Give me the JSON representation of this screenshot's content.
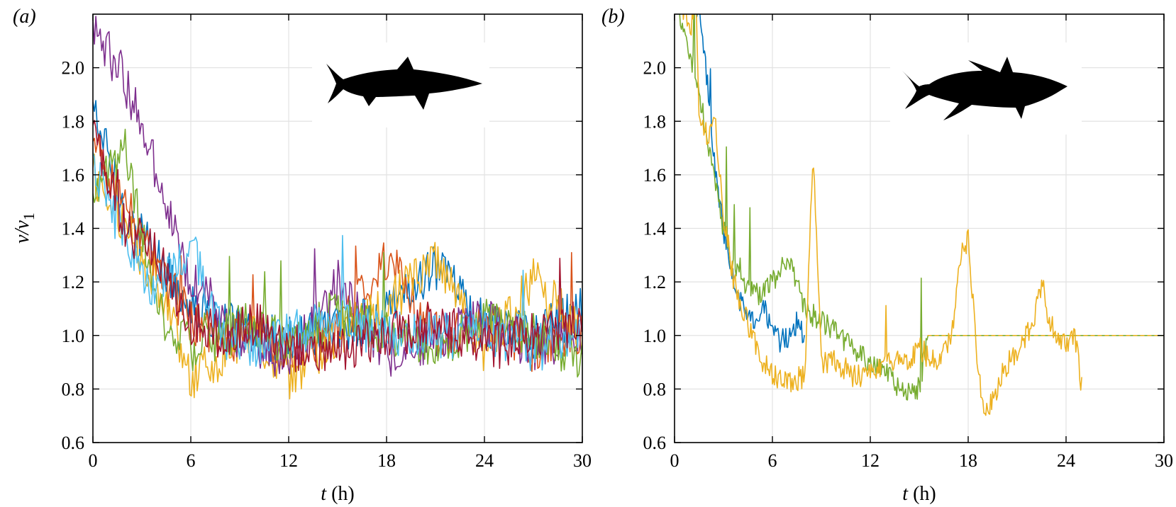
{
  "chart_data": [
    {
      "type": "line",
      "panel_label": "(a)",
      "silhouette": "shark-icon",
      "xlabel_var": "t",
      "xlabel_unit": " (h)",
      "ylabel_var": "v/v",
      "ylabel_sub": "1",
      "xlim": [
        0,
        30
      ],
      "ylim": [
        0.6,
        2.2
      ],
      "xticks": [
        0,
        6,
        12,
        18,
        24,
        30
      ],
      "xtick_labels": [
        "0",
        "6",
        "12",
        "18",
        "24",
        "30"
      ],
      "yticks": [
        0.6,
        0.8,
        1.0,
        1.2,
        1.4,
        1.6,
        1.8,
        2.0
      ],
      "ytick_labels": [
        "0.6",
        "0.8",
        "1.0",
        "1.2",
        "1.4",
        "1.6",
        "1.8",
        "2.0"
      ],
      "grid": true,
      "series": [
        {
          "color": "#0072BD",
          "x": [
            0,
            2,
            4,
            6,
            8,
            10,
            12,
            15,
            18,
            21,
            24,
            27,
            30
          ],
          "y": [
            1.85,
            1.45,
            1.28,
            1.12,
            1.05,
            1.0,
            0.98,
            1.02,
            1.08,
            1.25,
            1.05,
            1.0,
            1.1
          ]
        },
        {
          "color": "#D95319",
          "x": [
            0,
            2,
            4,
            6,
            8,
            10,
            12,
            15,
            18,
            21,
            24,
            27,
            30
          ],
          "y": [
            1.7,
            1.5,
            1.25,
            1.05,
            0.98,
            1.0,
            0.95,
            1.0,
            1.3,
            1.0,
            1.05,
            0.95,
            1.0
          ]
        },
        {
          "color": "#EDB120",
          "x": [
            0,
            2,
            4,
            6,
            8,
            10,
            12,
            15,
            18,
            21,
            24,
            27,
            30
          ],
          "y": [
            1.6,
            1.4,
            1.2,
            0.85,
            0.9,
            1.0,
            0.85,
            1.0,
            1.1,
            1.3,
            0.95,
            1.2,
            1.0
          ]
        },
        {
          "color": "#7E2F8E",
          "x": [
            0,
            2,
            4,
            6,
            8,
            10,
            12,
            15,
            18,
            21,
            24,
            27,
            30
          ],
          "y": [
            2.15,
            1.95,
            1.6,
            1.2,
            1.05,
            0.95,
            0.9,
            1.2,
            0.9,
            1.0,
            1.05,
            0.95,
            1.0
          ]
        },
        {
          "color": "#77AC30",
          "x": [
            0,
            2,
            4,
            6,
            8,
            10,
            12,
            15,
            18,
            21,
            24,
            27,
            30
          ],
          "y": [
            1.5,
            1.7,
            1.1,
            0.95,
            1.0,
            1.05,
            0.95,
            1.1,
            1.0,
            0.95,
            1.05,
            1.0,
            0.9
          ]
        },
        {
          "color": "#4DBEEE",
          "x": [
            0,
            2,
            4,
            6,
            8,
            10,
            12,
            15,
            18,
            21,
            24,
            27,
            30
          ],
          "y": [
            1.65,
            1.35,
            1.15,
            1.35,
            1.0,
            0.95,
            1.0,
            1.05,
            1.0,
            1.0,
            1.0,
            0.95,
            1.0
          ]
        },
        {
          "color": "#A2142F",
          "x": [
            0,
            2,
            4,
            6,
            8,
            10,
            12,
            15,
            18,
            21,
            24,
            27,
            30
          ],
          "y": [
            1.75,
            1.4,
            1.3,
            1.05,
            1.0,
            1.05,
            0.95,
            0.95,
            1.0,
            1.05,
            0.95,
            1.0,
            1.05
          ]
        }
      ]
    },
    {
      "type": "line",
      "panel_label": "(b)",
      "silhouette": "tuna-icon",
      "xlabel_var": "t",
      "xlabel_unit": " (h)",
      "ylabel_var": "",
      "ylabel_sub": "",
      "xlim": [
        0,
        30
      ],
      "ylim": [
        0.6,
        2.2
      ],
      "xticks": [
        0,
        6,
        12,
        18,
        24,
        30
      ],
      "xtick_labels": [
        "0",
        "6",
        "12",
        "18",
        "24",
        "30"
      ],
      "yticks": [
        0.6,
        0.8,
        1.0,
        1.2,
        1.4,
        1.6,
        1.8,
        2.0
      ],
      "ytick_labels": [
        "0.6",
        "0.8",
        "1.0",
        "1.2",
        "1.4",
        "1.6",
        "1.8",
        "2.0"
      ],
      "grid": true,
      "series": [
        {
          "color": "#0072BD",
          "x": [
            1.0,
            1.5,
            2.0,
            2.5,
            3.0,
            3.5,
            4.0,
            4.5,
            5.0,
            5.5,
            6.0,
            6.5,
            7.0,
            7.5,
            8.0
          ],
          "y": [
            2.25,
            2.2,
            1.95,
            1.6,
            1.4,
            1.25,
            1.12,
            1.1,
            1.05,
            1.1,
            1.0,
            0.98,
            1.0,
            1.05,
            0.98
          ]
        },
        {
          "color": "#77AC30",
          "x": [
            0.3,
            1.0,
            1.5,
            2.0,
            2.5,
            3.0,
            3.5,
            4.0,
            5.0,
            6.0,
            7.0,
            8.0,
            9.0,
            10.0,
            11.0,
            12.0,
            13.0,
            14.0,
            15.0,
            15.5,
            18.0,
            24.0,
            30.0
          ],
          "y": [
            2.2,
            2.05,
            1.9,
            1.75,
            1.55,
            1.4,
            1.28,
            1.2,
            1.15,
            1.2,
            1.3,
            1.1,
            1.05,
            1.0,
            0.95,
            0.9,
            0.85,
            0.8,
            0.8,
            1.0,
            1.0,
            1.0,
            1.0
          ]
        },
        {
          "color": "#EDB120",
          "x": [
            0.3,
            1.0,
            1.3,
            1.5,
            2.0,
            2.5,
            3.0,
            3.5,
            4.0,
            4.5,
            5.0,
            6.0,
            7.0,
            8.0,
            8.5,
            9.0,
            10.0,
            11.0,
            12.0,
            13.0,
            14.0,
            15.0,
            16.0,
            17.0,
            17.5,
            18.0,
            18.5,
            19.0,
            19.5,
            20.0,
            21.0,
            22.0,
            22.5,
            23.0,
            24.0,
            24.5,
            25.0
          ],
          "y": [
            2.25,
            2.15,
            2.3,
            1.85,
            1.75,
            1.8,
            1.45,
            1.25,
            1.1,
            1.05,
            0.95,
            0.85,
            0.82,
            0.85,
            1.7,
            0.9,
            0.9,
            0.85,
            0.85,
            0.9,
            0.9,
            0.95,
            0.9,
            1.0,
            1.3,
            1.35,
            0.95,
            0.7,
            0.75,
            0.85,
            0.95,
            1.05,
            1.2,
            1.05,
            0.95,
            1.0,
            0.8
          ]
        }
      ]
    }
  ]
}
